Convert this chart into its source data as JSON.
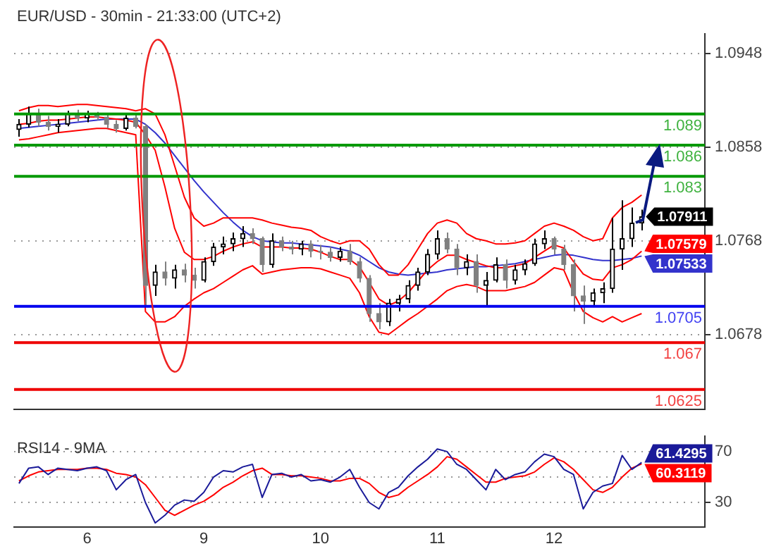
{
  "chart_data": [
    {
      "type": "candlestick",
      "title": "EUR/USD - 30min - 21:33:00 (UTC+2)",
      "colors": [
        "#000000",
        "#000000",
        "#808080",
        "#808080",
        "#000000",
        "#000000",
        "#808080",
        "#000000",
        "#808080",
        "#808080",
        "#808080",
        "#000000",
        "#808080",
        "#808080",
        "#000000",
        "#808080",
        "#000000",
        "#808080",
        "#808080",
        "#000000",
        "#000000",
        "#000000",
        "#000000",
        "#000000",
        "#808080",
        "#808080",
        "#000000",
        "#808080",
        "#808080",
        "#000000",
        "#808080",
        "#808080",
        "#808080",
        "#000000",
        "#808080",
        "#808080",
        "#808080",
        "#808080",
        "#000000",
        "#000000",
        "#000000",
        "#000000",
        "#000000",
        "#000000",
        "#808080",
        "#808080",
        "#000000",
        "#808080",
        "#000000",
        "#000000",
        "#808080",
        "#000000",
        "#000000",
        "#000000",
        "#000000",
        "#808080",
        "#808080",
        "#808080",
        "#808080",
        "#000000",
        "#000000",
        "#000000",
        "#000000",
        "#000000",
        "#000000",
        null,
        null,
        null,
        null,
        null,
        null
      ],
      "categories": [
        null,
        null,
        null,
        null,
        null,
        null,
        null,
        "6",
        null,
        null,
        null,
        null,
        null,
        null,
        null,
        null,
        null,
        null,
        null,
        "9",
        null,
        null,
        null,
        null,
        null,
        null,
        null,
        null,
        null,
        null,
        null,
        "10",
        null,
        null,
        null,
        null,
        null,
        null,
        null,
        null,
        null,
        null,
        null,
        "11",
        null,
        null,
        null,
        null,
        null,
        null,
        null,
        null,
        null,
        null,
        null,
        "12",
        null,
        null,
        null,
        null,
        null,
        null,
        null,
        null,
        null,
        null,
        null,
        null,
        null,
        null,
        null
      ],
      "ohlc": [
        [
          1.0875,
          1.0885,
          1.0868,
          1.088
        ],
        [
          1.088,
          1.0897,
          1.0877,
          1.089
        ],
        [
          1.089,
          1.0895,
          1.0878,
          1.0882
        ],
        [
          1.0882,
          1.0888,
          1.0874,
          1.0878
        ],
        [
          1.0878,
          1.0885,
          1.0872,
          1.088
        ],
        [
          1.088,
          1.0893,
          1.0878,
          1.089
        ],
        [
          1.089,
          1.0894,
          1.0883,
          1.0886
        ],
        [
          1.0886,
          1.0893,
          1.0882,
          1.089
        ],
        [
          1.089,
          1.0892,
          1.0884,
          1.0887
        ],
        [
          1.0887,
          1.089,
          1.0876,
          1.088
        ],
        [
          1.088,
          1.0884,
          1.0872,
          1.0876
        ],
        [
          1.0876,
          1.0889,
          1.0874,
          1.0886
        ],
        [
          1.0886,
          1.0889,
          1.0876,
          1.0878
        ],
        [
          1.0878,
          1.088,
          1.0705,
          1.0725
        ],
        [
          1.0725,
          1.0745,
          1.0715,
          1.0738
        ],
        [
          1.0738,
          1.0748,
          1.0725,
          1.0732
        ],
        [
          1.0732,
          1.0745,
          1.0722,
          1.074
        ],
        [
          1.074,
          1.0746,
          1.0728,
          1.0735
        ],
        [
          1.0735,
          1.0742,
          1.0722,
          1.073
        ],
        [
          1.073,
          1.0752,
          1.0728,
          1.0748
        ],
        [
          1.0748,
          1.0766,
          1.0744,
          1.0762
        ],
        [
          1.0762,
          1.0772,
          1.0755,
          1.0765
        ],
        [
          1.0765,
          1.0776,
          1.0758,
          1.077
        ],
        [
          1.077,
          1.0782,
          1.0762,
          1.0775
        ],
        [
          1.0775,
          1.078,
          1.0765,
          1.077
        ],
        [
          1.077,
          1.0772,
          1.0738,
          1.0745
        ],
        [
          1.0745,
          1.0775,
          1.0742,
          1.0768
        ],
        [
          1.0768,
          1.0772,
          1.0758,
          1.0762
        ],
        [
          1.0762,
          1.0768,
          1.0755,
          1.076
        ],
        [
          1.076,
          1.0768,
          1.0754,
          1.0765
        ],
        [
          1.0765,
          1.0768,
          1.0752,
          1.0758
        ],
        [
          1.0758,
          1.0764,
          1.075,
          1.0757
        ],
        [
          1.0757,
          1.0762,
          1.0748,
          1.0752
        ],
        [
          1.0752,
          1.0762,
          1.0748,
          1.0758
        ],
        [
          1.0758,
          1.0765,
          1.0745,
          1.0748
        ],
        [
          1.0748,
          1.0752,
          1.0728,
          1.0732
        ],
        [
          1.0732,
          1.0735,
          1.069,
          1.0698
        ],
        [
          1.0698,
          1.0708,
          1.0683,
          1.069
        ],
        [
          1.069,
          1.0712,
          1.0686,
          1.0708
        ],
        [
          1.0708,
          1.0716,
          1.07,
          1.0712
        ],
        [
          1.0712,
          1.073,
          1.0708,
          1.0725
        ],
        [
          1.0725,
          1.0742,
          1.072,
          1.0738
        ],
        [
          1.0738,
          1.076,
          1.0735,
          1.0755
        ],
        [
          1.0755,
          1.0778,
          1.075,
          1.077
        ],
        [
          1.077,
          1.0776,
          1.0756,
          1.076
        ],
        [
          1.076,
          1.0765,
          1.0735,
          1.0742
        ],
        [
          1.0742,
          1.0755,
          1.0735,
          1.0748
        ],
        [
          1.0748,
          1.0755,
          1.0718,
          1.0725
        ],
        [
          1.0725,
          1.0738,
          1.0705,
          1.073
        ],
        [
          1.073,
          1.0752,
          1.0728,
          1.0745
        ],
        [
          1.0745,
          1.075,
          1.0722,
          1.073
        ],
        [
          1.073,
          1.0745,
          1.0726,
          1.074
        ],
        [
          1.074,
          1.075,
          1.0735,
          1.0746
        ],
        [
          1.0746,
          1.077,
          1.0744,
          1.0765
        ],
        [
          1.0765,
          1.0778,
          1.076,
          1.077
        ],
        [
          1.077,
          1.0772,
          1.0755,
          1.076
        ],
        [
          1.076,
          1.0764,
          1.074,
          1.0745
        ],
        [
          1.0745,
          1.075,
          1.07,
          1.0715
        ],
        [
          1.0715,
          1.0725,
          1.0688,
          1.071
        ],
        [
          1.071,
          1.0722,
          1.0705,
          1.0718
        ],
        [
          1.0718,
          1.0728,
          1.0708,
          1.0722
        ],
        [
          1.0722,
          1.079,
          1.0718,
          1.076
        ],
        [
          1.076,
          1.0807,
          1.074,
          1.077
        ],
        [
          1.077,
          1.08,
          1.0762,
          1.0785
        ],
        [
          1.0785,
          1.0798,
          1.0778,
          1.07911
        ],
        null,
        null,
        null,
        null,
        null,
        null
      ],
      "value_labels": [
        null,
        null,
        null,
        null,
        null,
        null,
        null,
        null,
        null,
        null,
        null,
        null,
        null,
        null,
        null,
        null,
        null,
        null,
        null,
        null,
        null,
        null,
        null,
        null,
        null,
        null,
        null,
        null,
        null,
        null,
        null,
        null,
        null,
        null,
        null,
        null,
        null,
        null,
        null,
        null,
        null,
        null,
        null,
        null,
        null,
        null,
        null,
        null,
        null,
        null,
        null,
        null,
        null,
        null,
        null,
        null,
        null,
        null,
        null,
        null,
        null,
        null,
        null,
        null,
        "1.07911",
        null,
        null,
        null,
        null,
        null,
        null
      ],
      "series": [
        {
          "type": "line",
          "color": "#ff0000",
          "values": [
            1.0893,
            1.0896,
            1.0898,
            1.0898,
            1.0897,
            1.0898,
            1.0899,
            1.0899,
            1.0898,
            1.0897,
            1.0896,
            1.0895,
            1.0893,
            1.0895,
            1.089,
            1.087,
            1.084,
            1.081,
            1.079,
            1.0782,
            1.0785,
            1.079,
            1.079,
            1.079,
            1.079,
            1.0788,
            1.0785,
            1.0783,
            1.0781,
            1.078,
            1.0778,
            1.0772,
            1.0768,
            1.0765,
            1.0768,
            1.0768,
            1.076,
            1.0745,
            1.0735,
            1.0735,
            1.0745,
            1.076,
            1.0775,
            1.0785,
            1.0788,
            1.0785,
            1.0775,
            1.077,
            1.0768,
            1.0765,
            1.0765,
            1.0766,
            1.0768,
            1.0775,
            1.0782,
            1.0785,
            1.0782,
            1.0778,
            1.0772,
            1.0768,
            1.077,
            1.079,
            1.08,
            1.0805,
            1.0812,
            null,
            null,
            null,
            null,
            null,
            null
          ]
        },
        {
          "type": "line",
          "color": "#ff0000",
          "values": [
            1.0865,
            1.0866,
            1.0868,
            1.087,
            1.0872,
            1.0873,
            1.0874,
            1.0875,
            1.0876,
            1.0876,
            1.0874,
            1.0872,
            1.087,
            1.07,
            1.069,
            1.069,
            1.0695,
            1.0705,
            1.0712,
            1.0718,
            1.0722,
            1.0728,
            1.0734,
            1.074,
            1.0744,
            1.0736,
            1.0738,
            1.074,
            1.0741,
            1.0742,
            1.0742,
            1.0741,
            1.0738,
            1.0735,
            1.0732,
            1.0718,
            1.0695,
            1.068,
            1.0678,
            1.0685,
            1.0692,
            1.0698,
            1.0705,
            1.0712,
            1.072,
            1.0724,
            1.0726,
            1.0724,
            1.072,
            1.072,
            1.072,
            1.0722,
            1.0724,
            1.0728,
            1.0735,
            1.0742,
            1.074,
            1.0718,
            1.07,
            1.0694,
            1.069,
            1.0695,
            1.069,
            1.0694,
            1.0698,
            null,
            null,
            null,
            null,
            null,
            null
          ]
        },
        {
          "type": "line",
          "color": "#ff0000",
          "values": [
            1.088,
            1.0881,
            1.0883,
            1.0884,
            1.0884,
            1.0885,
            1.0886,
            1.0887,
            1.0887,
            1.0886,
            1.0885,
            1.0884,
            1.0882,
            1.087,
            1.0855,
            1.082,
            1.078,
            1.0757,
            1.075,
            1.075,
            1.0753,
            1.0758,
            1.0762,
            1.0765,
            1.0767,
            1.0762,
            1.0762,
            1.0762,
            1.0761,
            1.0761,
            1.076,
            1.0757,
            1.0753,
            1.075,
            1.075,
            1.0743,
            1.0728,
            1.0712,
            1.0706,
            1.071,
            1.0718,
            1.0729,
            1.074,
            1.0748,
            1.0754,
            1.0754,
            1.075,
            1.0747,
            1.0744,
            1.0742,
            1.0742,
            1.0744,
            1.0746,
            1.0752,
            1.0758,
            1.0764,
            1.0761,
            1.0748,
            1.0736,
            1.0731,
            1.073,
            1.0742,
            1.0745,
            1.075,
            1.07579,
            null,
            null,
            null,
            null,
            null,
            null
          ],
          "value_labels": [
            null,
            null,
            null,
            null,
            null,
            null,
            null,
            null,
            null,
            null,
            null,
            null,
            null,
            null,
            null,
            null,
            null,
            null,
            null,
            null,
            null,
            null,
            null,
            null,
            null,
            null,
            null,
            null,
            null,
            null,
            null,
            null,
            null,
            null,
            null,
            null,
            null,
            null,
            null,
            null,
            null,
            null,
            null,
            null,
            null,
            null,
            null,
            null,
            null,
            null,
            null,
            null,
            null,
            null,
            null,
            null,
            null,
            null,
            null,
            null,
            null,
            null,
            null,
            null,
            "1.07579",
            null,
            null,
            null,
            null,
            null,
            null
          ]
        },
        {
          "type": "line",
          "color": "#3333cc",
          "values": [
            1.0876,
            1.0877,
            1.0878,
            1.0879,
            1.088,
            1.0881,
            1.0882,
            1.0883,
            1.0884,
            1.0885,
            1.0885,
            1.0885,
            1.0885,
            1.088,
            1.0872,
            1.0862,
            1.085,
            1.0838,
            1.0826,
            1.0815,
            1.0805,
            1.0795,
            1.0786,
            1.0778,
            1.0772,
            1.0768,
            1.0767,
            1.0766,
            1.0766,
            1.0765,
            1.0764,
            1.0763,
            1.0762,
            1.076,
            1.0758,
            1.0754,
            1.0748,
            1.0742,
            1.0738,
            1.0736,
            1.0735,
            1.0736,
            1.0737,
            1.0738,
            1.074,
            1.0741,
            1.0742,
            1.0743,
            1.0743,
            1.0744,
            1.0745,
            1.0746,
            1.0748,
            1.075,
            1.0752,
            1.0754,
            1.0755,
            1.0754,
            1.0752,
            1.075,
            1.0749,
            1.0749,
            1.075,
            1.0751,
            1.07533,
            null,
            null,
            null,
            null,
            null,
            null
          ],
          "value_labels": [
            null,
            null,
            null,
            null,
            null,
            null,
            null,
            null,
            null,
            null,
            null,
            null,
            null,
            null,
            null,
            null,
            null,
            null,
            null,
            null,
            null,
            null,
            null,
            null,
            null,
            null,
            null,
            null,
            null,
            null,
            null,
            null,
            null,
            null,
            null,
            null,
            null,
            null,
            null,
            null,
            null,
            null,
            null,
            null,
            null,
            null,
            null,
            null,
            null,
            null,
            null,
            null,
            null,
            null,
            null,
            null,
            null,
            null,
            null,
            null,
            null,
            null,
            null,
            null,
            "1.07533",
            null,
            null,
            null,
            null,
            null,
            null
          ]
        }
      ],
      "ylim": [
        1.0606,
        1.0967
      ],
      "yticks": [
        1.0948,
        1.0858,
        1.0768,
        1.0678
      ],
      "grid": "y",
      "tick_labels": "y",
      "ref_lines": [
        {
          "axis": "y",
          "value": 1.089,
          "label": "1.089",
          "color": "#009900"
        },
        {
          "axis": "y",
          "value": 1.086,
          "label": "1.086",
          "color": "#009900"
        },
        {
          "axis": "y",
          "value": 1.083,
          "label": "1.083",
          "color": "#009900"
        },
        {
          "axis": "y",
          "value": 1.0705,
          "label": "1.0705",
          "color": "#0000ee"
        },
        {
          "axis": "y",
          "value": 1.067,
          "label": "1.067",
          "color": "#ee0000"
        },
        {
          "axis": "y",
          "value": 1.0625,
          "label": "1.0625",
          "color": "#ee0000"
        }
      ]
    },
    {
      "type": "line",
      "title": "RSI14 - 9MA",
      "categories": [
        null,
        null,
        null,
        null,
        null,
        null,
        null,
        "6",
        null,
        null,
        null,
        null,
        null,
        null,
        null,
        null,
        null,
        null,
        null,
        "9",
        null,
        null,
        null,
        null,
        null,
        null,
        null,
        null,
        null,
        null,
        null,
        "10",
        null,
        null,
        null,
        null,
        null,
        null,
        null,
        null,
        null,
        null,
        null,
        "11",
        null,
        null,
        null,
        null,
        null,
        null,
        null,
        null,
        null,
        null,
        null,
        "12",
        null,
        null,
        null,
        null,
        null,
        null,
        null,
        null,
        null,
        null,
        null,
        null,
        null,
        null,
        null
      ],
      "series": [
        {
          "color": "#1a1a99",
          "values": [
            45,
            57,
            58,
            52,
            57,
            56,
            55,
            57,
            58,
            55,
            40,
            48,
            52,
            30,
            14,
            20,
            28,
            32,
            31,
            38,
            50,
            55,
            54,
            58,
            60,
            34,
            52,
            53,
            50,
            52,
            47,
            48,
            46,
            50,
            56,
            42,
            30,
            25,
            38,
            42,
            51,
            58,
            64,
            72,
            70,
            60,
            56,
            48,
            40,
            56,
            48,
            52,
            54,
            62,
            68,
            66,
            56,
            52,
            25,
            38,
            43,
            45,
            67,
            56,
            61.4295,
            null,
            null,
            null,
            null,
            null,
            null
          ],
          "value_labels": [
            null,
            null,
            null,
            null,
            null,
            null,
            null,
            null,
            null,
            null,
            null,
            null,
            null,
            null,
            null,
            null,
            null,
            null,
            null,
            null,
            null,
            null,
            null,
            null,
            null,
            null,
            null,
            null,
            null,
            null,
            null,
            null,
            null,
            null,
            null,
            null,
            null,
            null,
            null,
            null,
            null,
            null,
            null,
            null,
            null,
            null,
            null,
            null,
            null,
            null,
            null,
            null,
            null,
            null,
            null,
            null,
            null,
            null,
            null,
            null,
            null,
            null,
            null,
            null,
            "61.4295",
            null,
            null,
            null,
            null,
            null,
            null
          ]
        },
        {
          "color": "#ff0000",
          "values": [
            47,
            51,
            54,
            55,
            56,
            56,
            56,
            57,
            57,
            56,
            53,
            52,
            50,
            44,
            34,
            24,
            20,
            24,
            28,
            31,
            36,
            42,
            46,
            51,
            55,
            57,
            52,
            52,
            51,
            51,
            50,
            49,
            47,
            47,
            49,
            49,
            45,
            38,
            34,
            36,
            42,
            47,
            52,
            58,
            66,
            64,
            58,
            52,
            46,
            46,
            49,
            50,
            51,
            54,
            60,
            65,
            62,
            56,
            48,
            40,
            38,
            42,
            50,
            57,
            60.3119,
            null,
            null,
            null,
            null,
            null,
            null
          ],
          "value_labels": [
            null,
            null,
            null,
            null,
            null,
            null,
            null,
            null,
            null,
            null,
            null,
            null,
            null,
            null,
            null,
            null,
            null,
            null,
            null,
            null,
            null,
            null,
            null,
            null,
            null,
            null,
            null,
            null,
            null,
            null,
            null,
            null,
            null,
            null,
            null,
            null,
            null,
            null,
            null,
            null,
            null,
            null,
            null,
            null,
            null,
            null,
            null,
            null,
            null,
            null,
            null,
            null,
            null,
            null,
            null,
            null,
            null,
            null,
            null,
            null,
            null,
            null,
            null,
            null,
            "60.3119",
            null,
            null,
            null,
            null,
            null,
            null
          ]
        }
      ],
      "ylim": [
        11,
        82
      ],
      "yticks": [
        30,
        {
          "value": 50,
          "label": null
        },
        70
      ],
      "grid": "y"
    }
  ]
}
